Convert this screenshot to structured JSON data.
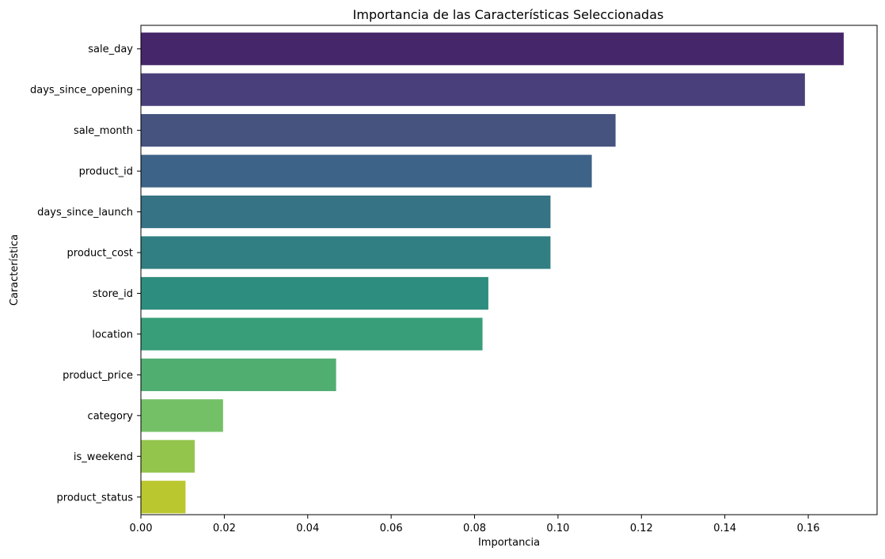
{
  "chart_data": {
    "type": "bar",
    "orientation": "horizontal",
    "title": "Importancia de las Características Seleccionadas",
    "xlabel": "Importancia",
    "ylabel": "Característica",
    "categories": [
      "sale_day",
      "days_since_opening",
      "sale_month",
      "product_id",
      "days_since_launch",
      "product_cost",
      "store_id",
      "location",
      "product_price",
      "category",
      "is_weekend",
      "product_status"
    ],
    "values": [
      0.1685,
      0.1592,
      0.1138,
      0.1081,
      0.0982,
      0.0982,
      0.0833,
      0.0819,
      0.0468,
      0.0197,
      0.0129,
      0.0107
    ],
    "colors": [
      "#46266a",
      "#493f7a",
      "#46537f",
      "#3e6388",
      "#357385",
      "#317f82",
      "#2d8d7f",
      "#389e79",
      "#51ae71",
      "#74c067",
      "#93c54c",
      "#bbc72e"
    ],
    "xlim": [
      0,
      0.1765
    ],
    "xticks": [
      "0.00",
      "0.02",
      "0.04",
      "0.06",
      "0.08",
      "0.10",
      "0.12",
      "0.14",
      "0.16"
    ],
    "grid": false,
    "legend": "none"
  }
}
